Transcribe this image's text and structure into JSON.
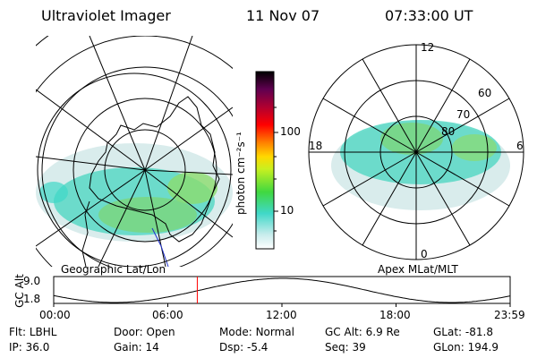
{
  "header": {
    "instrument": "Ultraviolet Imager",
    "date": "11 Nov 07",
    "time": "07:33:00 UT"
  },
  "colorbar": {
    "label": "photon cm⁻²s⁻¹",
    "ticks": [
      "100",
      "10"
    ]
  },
  "geo_map": {
    "label": "Geographic Lat/Lon"
  },
  "polar_plot": {
    "label": "Apex MLat/MLT",
    "mlt_labels": {
      "top": "12",
      "left": "18",
      "right": "6",
      "bottom": "0"
    },
    "lat_labels": [
      "60",
      "70",
      "80"
    ]
  },
  "altitude_plot": {
    "ylabel": "GC Alt",
    "yticks": [
      "9.0",
      "1.8"
    ],
    "xticks": [
      "00:00",
      "06:00",
      "12:00",
      "18:00",
      "23:59"
    ],
    "current_time_hours": 7.55
  },
  "info": {
    "row1": [
      {
        "label": "Flt:",
        "value": "LBHL"
      },
      {
        "label": "Door:",
        "value": "Open"
      },
      {
        "label": "Mode:",
        "value": "Normal"
      },
      {
        "label": "GC Alt:",
        "value": "6.9 Re"
      },
      {
        "label": "GLat:",
        "value": "-81.8"
      }
    ],
    "row2": [
      {
        "label": "IP:",
        "value": "36.0"
      },
      {
        "label": "Gain:",
        "value": "14"
      },
      {
        "label": "Dsp:",
        "value": "-5.4"
      },
      {
        "label": "Seq:",
        "value": "39"
      },
      {
        "label": "GLon:",
        "value": "194.9"
      }
    ]
  },
  "colors": {
    "aurora_cyan": "#3fd8c8",
    "aurora_green": "#6fd06f",
    "aurora_light": "#cfe8e8",
    "time_marker": "#ff0000"
  }
}
